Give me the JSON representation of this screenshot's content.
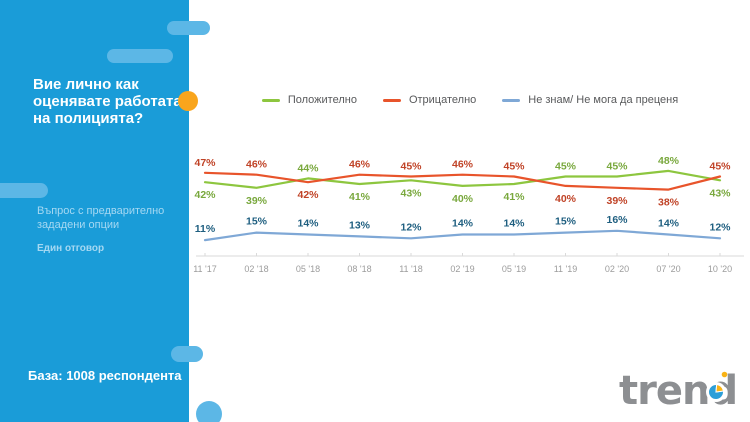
{
  "sidebar": {
    "title": "Вие лично как\nоценявате работата\nна полицията?",
    "subtitle": "Въпрос с предварително\nзададени опции",
    "answer_note": "Един отговор",
    "base_note": "База: 1008 респондента",
    "bg_color": "#1A9CD8",
    "pill_color": "#5CB7E6",
    "dot_color": "#F9A51C"
  },
  "chart_data": {
    "type": "line",
    "x": [
      "11 '17",
      "02 '18",
      "05 '18",
      "08 '18",
      "11 '18",
      "02 '19",
      "05 '19",
      "11 '19",
      "02 '20",
      "07 '20",
      "10 '20"
    ],
    "series": [
      {
        "name": "Положително",
        "color": "#8DC63F",
        "label_color": "#79A83D",
        "values": [
          42,
          39,
          44,
          41,
          43,
          40,
          41,
          45,
          45,
          48,
          43
        ]
      },
      {
        "name": "Отрицателно",
        "color": "#E8542B",
        "label_color": "#C04327",
        "values": [
          47,
          46,
          42,
          46,
          45,
          46,
          45,
          40,
          39,
          38,
          45
        ]
      },
      {
        "name": "Не знам/ Не мога да преценя",
        "color": "#7FA8D6",
        "label_color": "#1F5F80",
        "values": [
          11,
          15,
          14,
          13,
          12,
          14,
          14,
          15,
          16,
          14,
          12
        ]
      }
    ],
    "unit": "%",
    "ylim": [
      0,
      55
    ],
    "grid": false,
    "legend_position": "top",
    "axis_color": "#DADADA",
    "tick_label_color": "#9C9C9C",
    "legend_text_color": "#58595B"
  },
  "logo": {
    "text": "trend",
    "color": "#8D8F92",
    "pie_blue": "#2D9FD8",
    "pie_yellow": "#F9B316"
  }
}
